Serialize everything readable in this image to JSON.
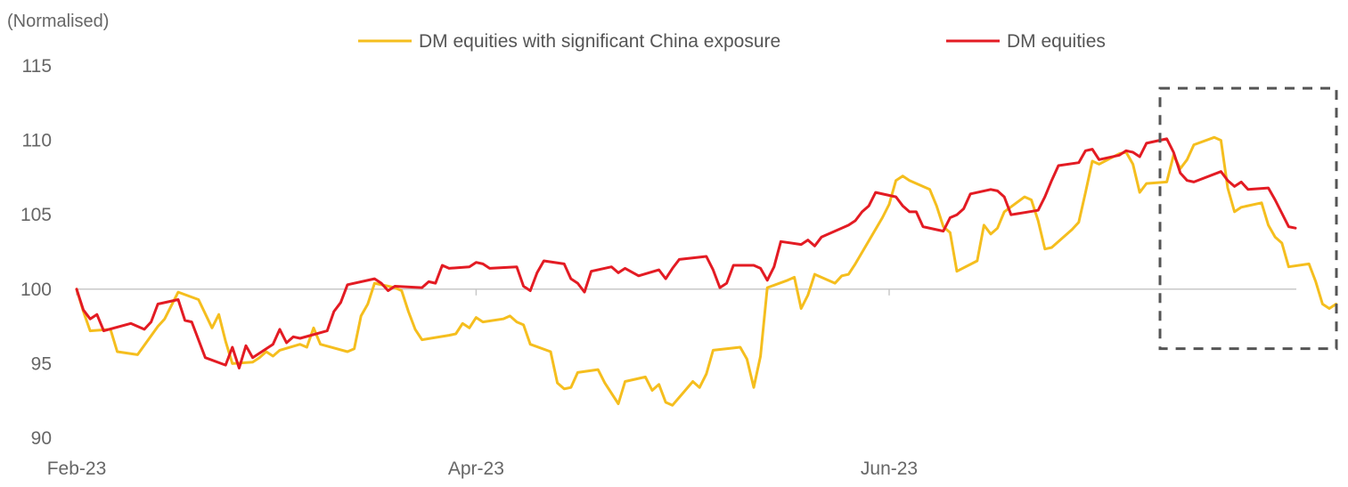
{
  "chart_data": {
    "type": "line",
    "unit_label": "(Normalised)",
    "xlabel": "",
    "ylabel": "",
    "ylim": [
      90,
      115
    ],
    "yticks": [
      90,
      95,
      100,
      105,
      110,
      115
    ],
    "xlim": [
      "2023-02-01",
      "2023-07-31"
    ],
    "x_ticks": [
      {
        "date": "2023-02-01",
        "label": "Feb-23"
      },
      {
        "date": "2023-04-01",
        "label": "Apr-23"
      },
      {
        "date": "2023-06-01",
        "label": "Jun-23"
      }
    ],
    "reference_line": 100,
    "legend_position": "top",
    "grid": false,
    "highlight_box": {
      "x_start": "2023-07-11",
      "x_end": "2023-08-08",
      "y_start": 96,
      "y_end": 113.5
    },
    "series": [
      {
        "name": "DM equities with significant China exposure",
        "color": "#F5BE1E",
        "points": [
          [
            "2023-02-01",
            100.0
          ],
          [
            "2023-02-02",
            98.5
          ],
          [
            "2023-02-03",
            97.2
          ],
          [
            "2023-02-06",
            97.3
          ],
          [
            "2023-02-07",
            95.8
          ],
          [
            "2023-02-10",
            95.6
          ],
          [
            "2023-02-13",
            97.5
          ],
          [
            "2023-02-14",
            98.0
          ],
          [
            "2023-02-16",
            99.8
          ],
          [
            "2023-02-19",
            99.3
          ],
          [
            "2023-02-21",
            97.4
          ],
          [
            "2023-02-22",
            98.3
          ],
          [
            "2023-02-23",
            96.5
          ],
          [
            "2023-02-24",
            95.0
          ],
          [
            "2023-02-27",
            95.1
          ],
          [
            "2023-02-28",
            95.4
          ],
          [
            "2023-03-01",
            95.8
          ],
          [
            "2023-03-02",
            95.5
          ],
          [
            "2023-03-03",
            95.9
          ],
          [
            "2023-03-06",
            96.3
          ],
          [
            "2023-03-07",
            96.1
          ],
          [
            "2023-03-08",
            97.4
          ],
          [
            "2023-03-09",
            96.3
          ],
          [
            "2023-03-13",
            95.8
          ],
          [
            "2023-03-14",
            96.0
          ],
          [
            "2023-03-15",
            98.2
          ],
          [
            "2023-03-16",
            99.0
          ],
          [
            "2023-03-17",
            100.4
          ],
          [
            "2023-03-20",
            100.1
          ],
          [
            "2023-03-21",
            99.9
          ],
          [
            "2023-03-22",
            98.5
          ],
          [
            "2023-03-23",
            97.3
          ],
          [
            "2023-03-24",
            96.6
          ],
          [
            "2023-03-28",
            96.9
          ],
          [
            "2023-03-29",
            97.0
          ],
          [
            "2023-03-30",
            97.7
          ],
          [
            "2023-03-31",
            97.4
          ],
          [
            "2023-04-01",
            98.1
          ],
          [
            "2023-04-02",
            97.8
          ],
          [
            "2023-04-05",
            98.0
          ],
          [
            "2023-04-06",
            98.2
          ],
          [
            "2023-04-07",
            97.8
          ],
          [
            "2023-04-08",
            97.6
          ],
          [
            "2023-04-09",
            96.3
          ],
          [
            "2023-04-12",
            95.8
          ],
          [
            "2023-04-13",
            93.7
          ],
          [
            "2023-04-14",
            93.3
          ],
          [
            "2023-04-15",
            93.4
          ],
          [
            "2023-04-16",
            94.4
          ],
          [
            "2023-04-19",
            94.6
          ],
          [
            "2023-04-20",
            93.7
          ],
          [
            "2023-04-22",
            92.3
          ],
          [
            "2023-04-23",
            93.8
          ],
          [
            "2023-04-26",
            94.1
          ],
          [
            "2023-04-27",
            93.2
          ],
          [
            "2023-04-28",
            93.6
          ],
          [
            "2023-04-29",
            92.4
          ],
          [
            "2023-04-30",
            92.2
          ],
          [
            "2023-05-03",
            93.8
          ],
          [
            "2023-05-04",
            93.4
          ],
          [
            "2023-05-05",
            94.3
          ],
          [
            "2023-05-06",
            95.9
          ],
          [
            "2023-05-10",
            96.1
          ],
          [
            "2023-05-11",
            95.3
          ],
          [
            "2023-05-12",
            93.4
          ],
          [
            "2023-05-13",
            95.5
          ],
          [
            "2023-05-14",
            100.1
          ],
          [
            "2023-05-17",
            100.6
          ],
          [
            "2023-05-18",
            100.8
          ],
          [
            "2023-05-19",
            98.7
          ],
          [
            "2023-05-20",
            99.6
          ],
          [
            "2023-05-21",
            101.0
          ],
          [
            "2023-05-24",
            100.4
          ],
          [
            "2023-05-25",
            100.9
          ],
          [
            "2023-05-26",
            101.0
          ],
          [
            "2023-05-27",
            101.7
          ],
          [
            "2023-05-31",
            104.8
          ],
          [
            "2023-06-01",
            105.7
          ],
          [
            "2023-06-02",
            107.3
          ],
          [
            "2023-06-03",
            107.6
          ],
          [
            "2023-06-04",
            107.3
          ],
          [
            "2023-06-07",
            106.7
          ],
          [
            "2023-06-08",
            105.6
          ],
          [
            "2023-06-09",
            104.2
          ],
          [
            "2023-06-10",
            103.8
          ],
          [
            "2023-06-11",
            101.2
          ],
          [
            "2023-06-14",
            101.9
          ],
          [
            "2023-06-15",
            104.3
          ],
          [
            "2023-06-16",
            103.7
          ],
          [
            "2023-06-17",
            104.1
          ],
          [
            "2023-06-18",
            105.2
          ],
          [
            "2023-06-21",
            106.2
          ],
          [
            "2023-06-22",
            106.0
          ],
          [
            "2023-06-23",
            104.6
          ],
          [
            "2023-06-24",
            102.7
          ],
          [
            "2023-06-25",
            102.8
          ],
          [
            "2023-06-28",
            104.0
          ],
          [
            "2023-06-29",
            104.5
          ],
          [
            "2023-06-30",
            106.5
          ],
          [
            "2023-07-01",
            108.6
          ],
          [
            "2023-07-02",
            108.4
          ],
          [
            "2023-07-05",
            109.1
          ],
          [
            "2023-07-06",
            109.2
          ],
          [
            "2023-07-07",
            108.4
          ],
          [
            "2023-07-08",
            106.5
          ],
          [
            "2023-07-09",
            107.1
          ],
          [
            "2023-07-12",
            107.2
          ],
          [
            "2023-07-13",
            109.0
          ],
          [
            "2023-07-14",
            108.1
          ],
          [
            "2023-07-15",
            108.7
          ],
          [
            "2023-07-16",
            109.7
          ],
          [
            "2023-07-19",
            110.2
          ],
          [
            "2023-07-20",
            110.0
          ],
          [
            "2023-07-21",
            106.8
          ],
          [
            "2023-07-22",
            105.2
          ],
          [
            "2023-07-23",
            105.5
          ],
          [
            "2023-07-26",
            105.8
          ],
          [
            "2023-07-27",
            104.3
          ],
          [
            "2023-07-28",
            103.5
          ],
          [
            "2023-07-29",
            103.1
          ],
          [
            "2023-07-30",
            101.5
          ],
          [
            "2023-08-02",
            101.7
          ],
          [
            "2023-08-03",
            100.5
          ],
          [
            "2023-08-04",
            99.0
          ],
          [
            "2023-08-05",
            98.7
          ],
          [
            "2023-08-06",
            99.0
          ]
        ]
      },
      {
        "name": "DM equities",
        "color": "#E31B23",
        "points": [
          [
            "2023-02-01",
            100.0
          ],
          [
            "2023-02-02",
            98.6
          ],
          [
            "2023-02-03",
            98.0
          ],
          [
            "2023-02-04",
            98.3
          ],
          [
            "2023-02-05",
            97.2
          ],
          [
            "2023-02-09",
            97.7
          ],
          [
            "2023-02-11",
            97.3
          ],
          [
            "2023-02-12",
            97.8
          ],
          [
            "2023-02-13",
            99.0
          ],
          [
            "2023-02-16",
            99.3
          ],
          [
            "2023-02-17",
            97.9
          ],
          [
            "2023-02-18",
            97.8
          ],
          [
            "2023-02-20",
            95.4
          ],
          [
            "2023-02-23",
            94.9
          ],
          [
            "2023-02-24",
            96.1
          ],
          [
            "2023-02-25",
            94.7
          ],
          [
            "2023-02-26",
            96.2
          ],
          [
            "2023-02-27",
            95.4
          ],
          [
            "2023-03-02",
            96.3
          ],
          [
            "2023-03-03",
            97.3
          ],
          [
            "2023-03-04",
            96.4
          ],
          [
            "2023-03-05",
            96.8
          ],
          [
            "2023-03-06",
            96.7
          ],
          [
            "2023-03-10",
            97.2
          ],
          [
            "2023-03-11",
            98.5
          ],
          [
            "2023-03-12",
            99.1
          ],
          [
            "2023-03-13",
            100.3
          ],
          [
            "2023-03-17",
            100.7
          ],
          [
            "2023-03-18",
            100.4
          ],
          [
            "2023-03-19",
            99.9
          ],
          [
            "2023-03-20",
            100.2
          ],
          [
            "2023-03-24",
            100.1
          ],
          [
            "2023-03-25",
            100.5
          ],
          [
            "2023-03-26",
            100.4
          ],
          [
            "2023-03-27",
            101.6
          ],
          [
            "2023-03-28",
            101.4
          ],
          [
            "2023-03-31",
            101.5
          ],
          [
            "2023-04-01",
            101.8
          ],
          [
            "2023-04-02",
            101.7
          ],
          [
            "2023-04-03",
            101.4
          ],
          [
            "2023-04-07",
            101.5
          ],
          [
            "2023-04-08",
            100.2
          ],
          [
            "2023-04-09",
            99.9
          ],
          [
            "2023-04-10",
            101.1
          ],
          [
            "2023-04-11",
            101.9
          ],
          [
            "2023-04-14",
            101.7
          ],
          [
            "2023-04-15",
            100.7
          ],
          [
            "2023-04-16",
            100.4
          ],
          [
            "2023-04-17",
            99.8
          ],
          [
            "2023-04-18",
            101.2
          ],
          [
            "2023-04-21",
            101.5
          ],
          [
            "2023-04-22",
            101.1
          ],
          [
            "2023-04-23",
            101.4
          ],
          [
            "2023-04-25",
            100.9
          ],
          [
            "2023-04-28",
            101.3
          ],
          [
            "2023-04-29",
            100.7
          ],
          [
            "2023-04-30",
            101.4
          ],
          [
            "2023-05-01",
            102.0
          ],
          [
            "2023-05-05",
            102.2
          ],
          [
            "2023-05-06",
            101.3
          ],
          [
            "2023-05-07",
            100.1
          ],
          [
            "2023-05-08",
            100.4
          ],
          [
            "2023-05-09",
            101.6
          ],
          [
            "2023-05-12",
            101.6
          ],
          [
            "2023-05-13",
            101.4
          ],
          [
            "2023-05-14",
            100.6
          ],
          [
            "2023-05-15",
            101.5
          ],
          [
            "2023-05-16",
            103.2
          ],
          [
            "2023-05-19",
            103.0
          ],
          [
            "2023-05-20",
            103.3
          ],
          [
            "2023-05-21",
            102.9
          ],
          [
            "2023-05-22",
            103.5
          ],
          [
            "2023-05-26",
            104.3
          ],
          [
            "2023-05-27",
            104.6
          ],
          [
            "2023-05-28",
            105.2
          ],
          [
            "2023-05-29",
            105.6
          ],
          [
            "2023-05-30",
            106.5
          ],
          [
            "2023-06-02",
            106.2
          ],
          [
            "2023-06-03",
            105.6
          ],
          [
            "2023-06-04",
            105.2
          ],
          [
            "2023-06-05",
            105.2
          ],
          [
            "2023-06-06",
            104.2
          ],
          [
            "2023-06-09",
            103.9
          ],
          [
            "2023-06-10",
            104.8
          ],
          [
            "2023-06-11",
            105.0
          ],
          [
            "2023-06-12",
            105.4
          ],
          [
            "2023-06-13",
            106.4
          ],
          [
            "2023-06-16",
            106.7
          ],
          [
            "2023-06-17",
            106.6
          ],
          [
            "2023-06-18",
            106.2
          ],
          [
            "2023-06-19",
            105.0
          ],
          [
            "2023-06-23",
            105.3
          ],
          [
            "2023-06-24",
            106.2
          ],
          [
            "2023-06-25",
            107.3
          ],
          [
            "2023-06-26",
            108.3
          ],
          [
            "2023-06-29",
            108.5
          ],
          [
            "2023-06-30",
            109.3
          ],
          [
            "2023-07-01",
            109.4
          ],
          [
            "2023-07-02",
            108.7
          ],
          [
            "2023-07-05",
            109.0
          ],
          [
            "2023-07-06",
            109.3
          ],
          [
            "2023-07-07",
            109.2
          ],
          [
            "2023-07-08",
            108.9
          ],
          [
            "2023-07-09",
            109.8
          ],
          [
            "2023-07-12",
            110.1
          ],
          [
            "2023-07-13",
            109.2
          ],
          [
            "2023-07-14",
            107.8
          ],
          [
            "2023-07-15",
            107.3
          ],
          [
            "2023-07-16",
            107.2
          ],
          [
            "2023-07-20",
            107.9
          ],
          [
            "2023-07-21",
            107.3
          ],
          [
            "2023-07-22",
            106.9
          ],
          [
            "2023-07-23",
            107.2
          ],
          [
            "2023-07-24",
            106.7
          ],
          [
            "2023-07-27",
            106.8
          ],
          [
            "2023-07-28",
            106.0
          ],
          [
            "2023-07-29",
            105.1
          ],
          [
            "2023-07-30",
            104.2
          ],
          [
            "2023-07-31",
            104.1
          ]
        ]
      }
    ]
  }
}
